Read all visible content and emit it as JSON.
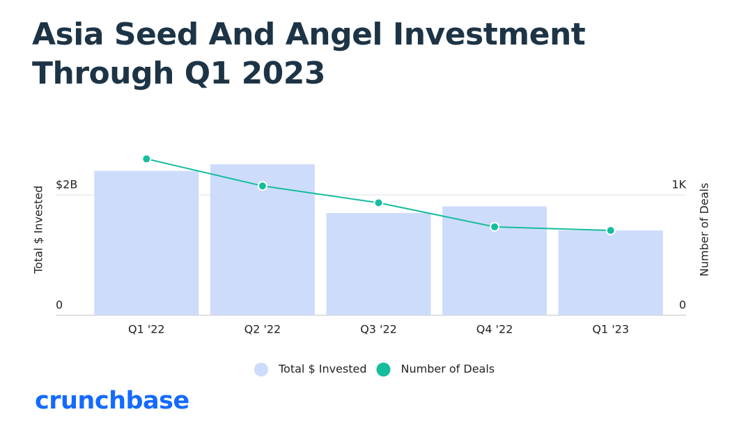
{
  "chart_data": {
    "type": "bar",
    "title": "Asia Seed And Angel Investment Through Q1 2023",
    "categories": [
      "Q1 '22",
      "Q2 '22",
      "Q3 '22",
      "Q4 '22",
      "Q1 '23"
    ],
    "series": [
      {
        "name": "Total $ Invested",
        "type": "bar",
        "color": "#cddcfa",
        "axis": "y",
        "values": [
          2400000000,
          2510000000,
          1700000000,
          1810000000,
          1410000000
        ]
      },
      {
        "name": "Number of Deals",
        "type": "line",
        "color": "#14bd9c",
        "axis": "y2",
        "values": [
          1300,
          1075,
          935,
          735,
          705
        ]
      }
    ],
    "ylabel": "Total $ Invested",
    "y2label": "Number of Deals",
    "ylim": [
      0,
      2800000000
    ],
    "yticks": [
      0,
      {
        "value": 2000000000,
        "label": "$2B"
      }
    ],
    "y2lim": [
      0,
      1400
    ],
    "y2ticks": [
      0,
      {
        "value": 1000,
        "label": "1K"
      }
    ],
    "grid": true,
    "legend": "bottom"
  },
  "brand": "crunchbase"
}
